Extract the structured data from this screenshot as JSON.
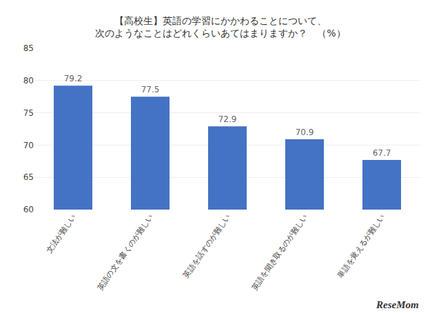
{
  "chart_data": {
    "type": "bar",
    "title": "【高校生】英語の学習にかかわることについて、\n次のようなことはどれくらいあてはまりますか？　（%）",
    "categories": [
      "文法が難しい",
      "英語の文を書くのが難しい",
      "英語を話すのが難しい",
      "英語を聞き取るのが難しい",
      "単語を覚えるが難しい"
    ],
    "values": [
      79.2,
      77.5,
      72.9,
      70.9,
      67.7
    ],
    "color": "#4472C4",
    "ylim": [
      60,
      85
    ],
    "yticks": [
      60,
      65,
      70,
      75,
      80,
      85
    ],
    "grid": true,
    "data_labels": true,
    "annotations": [
      "ReseMom"
    ]
  }
}
